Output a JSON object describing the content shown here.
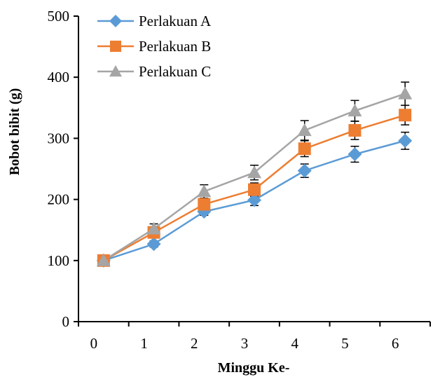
{
  "chart_data": {
    "type": "line",
    "title": "",
    "xlabel": "Minggu Ke-",
    "ylabel": "Bobot bibit (g)",
    "categories": [
      "0",
      "1",
      "2",
      "3",
      "4",
      "5",
      "6"
    ],
    "ylim": [
      0,
      500
    ],
    "yticks": [
      "0",
      "100",
      "200",
      "300",
      "400",
      "500"
    ],
    "grid": false,
    "legend_position": "top-left",
    "series": [
      {
        "name": "Perlakuan A",
        "color": "#5B9BD5",
        "marker": "diamond",
        "values": [
          100,
          127,
          180,
          199,
          247,
          274,
          296
        ],
        "errors": [
          0,
          5,
          6,
          9,
          11,
          13,
          14
        ]
      },
      {
        "name": "Perlakuan B",
        "color": "#ED7D31",
        "marker": "square",
        "values": [
          100,
          146,
          192,
          216,
          283,
          313,
          338
        ],
        "errors": [
          0,
          7,
          8,
          11,
          13,
          15,
          16
        ]
      },
      {
        "name": "Perlakuan C",
        "color": "#A5A5A5",
        "marker": "triangle",
        "values": [
          100,
          152,
          213,
          244,
          313,
          345,
          373
        ],
        "errors": [
          0,
          8,
          11,
          12,
          16,
          17,
          19
        ]
      }
    ]
  }
}
